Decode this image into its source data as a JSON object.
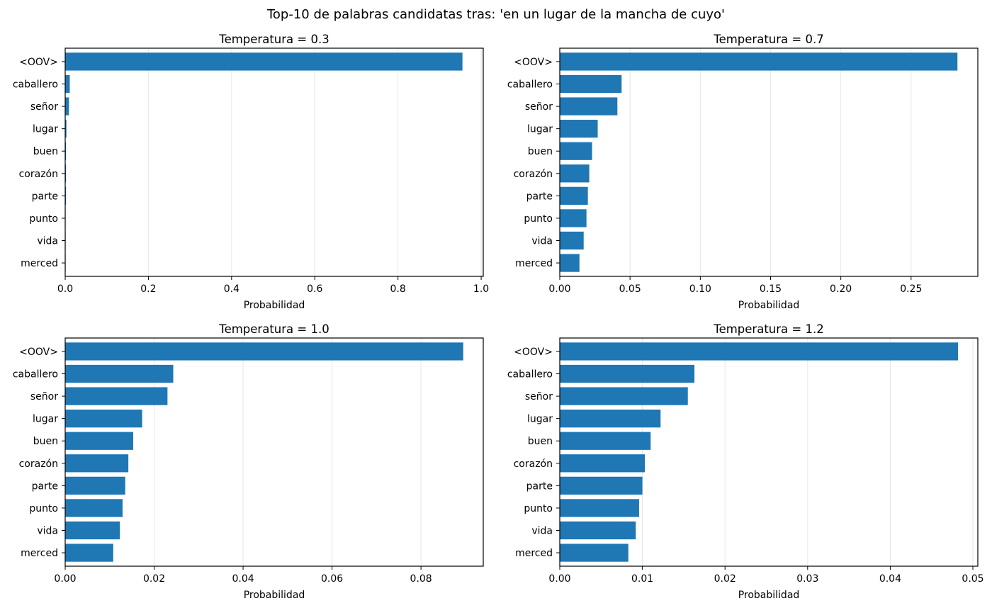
{
  "figure_title": "Top-10 de palabras candidatas tras: 'en un lugar de la mancha de cuyo'",
  "chart_data": [
    {
      "type": "bar",
      "orientation": "horizontal",
      "title": "Temperatura = 0.3",
      "xlabel": "Probabilidad",
      "ylabel": "",
      "categories": [
        "<OOV>",
        "caballero",
        "señor",
        "lugar",
        "buen",
        "corazón",
        "parte",
        "punto",
        "vida",
        "merced"
      ],
      "values": [
        0.955,
        0.011,
        0.009,
        0.003,
        0.002,
        0.002,
        0.002,
        0.001,
        0.001,
        0.001
      ],
      "xlim": [
        0,
        1.005
      ],
      "xticks": [
        0.0,
        0.2,
        0.4,
        0.6,
        0.8,
        1.0
      ],
      "xtick_labels": [
        "0.0",
        "0.2",
        "0.4",
        "0.6",
        "0.8",
        "1.0"
      ],
      "grid": "x",
      "color": "#1f77b4"
    },
    {
      "type": "bar",
      "orientation": "horizontal",
      "title": "Temperatura = 0.7",
      "xlabel": "Probabilidad",
      "ylabel": "",
      "categories": [
        "<OOV>",
        "caballero",
        "señor",
        "lugar",
        "buen",
        "corazón",
        "parte",
        "punto",
        "vida",
        "merced"
      ],
      "values": [
        0.283,
        0.044,
        0.041,
        0.027,
        0.023,
        0.021,
        0.02,
        0.019,
        0.017,
        0.014
      ],
      "xlim": [
        0,
        0.2975
      ],
      "xticks": [
        0.0,
        0.05,
        0.1,
        0.15,
        0.2,
        0.25
      ],
      "xtick_labels": [
        "0.00",
        "0.05",
        "0.10",
        "0.15",
        "0.20",
        "0.25"
      ],
      "grid": "x",
      "color": "#1f77b4"
    },
    {
      "type": "bar",
      "orientation": "horizontal",
      "title": "Temperatura = 1.0",
      "xlabel": "Probabilidad",
      "ylabel": "",
      "categories": [
        "<OOV>",
        "caballero",
        "señor",
        "lugar",
        "buen",
        "corazón",
        "parte",
        "punto",
        "vida",
        "merced"
      ],
      "values": [
        0.0895,
        0.0243,
        0.023,
        0.0173,
        0.0153,
        0.0142,
        0.0135,
        0.0129,
        0.0123,
        0.0108
      ],
      "xlim": [
        0,
        0.094
      ],
      "xticks": [
        0.0,
        0.02,
        0.04,
        0.06,
        0.08
      ],
      "xtick_labels": [
        "0.00",
        "0.02",
        "0.04",
        "0.06",
        "0.08"
      ],
      "grid": "x",
      "color": "#1f77b4"
    },
    {
      "type": "bar",
      "orientation": "horizontal",
      "title": "Temperatura = 1.2",
      "xlabel": "Probabilidad",
      "ylabel": "",
      "categories": [
        "<OOV>",
        "caballero",
        "señor",
        "lugar",
        "buen",
        "corazón",
        "parte",
        "punto",
        "vida",
        "merced"
      ],
      "values": [
        0.0482,
        0.0163,
        0.0155,
        0.0122,
        0.011,
        0.0103,
        0.01,
        0.0096,
        0.0092,
        0.0083
      ],
      "xlim": [
        0,
        0.0506
      ],
      "xticks": [
        0.0,
        0.01,
        0.02,
        0.03,
        0.04,
        0.05
      ],
      "xtick_labels": [
        "0.00",
        "0.01",
        "0.02",
        "0.03",
        "0.04",
        "0.05"
      ],
      "grid": "x",
      "color": "#1f77b4"
    }
  ]
}
